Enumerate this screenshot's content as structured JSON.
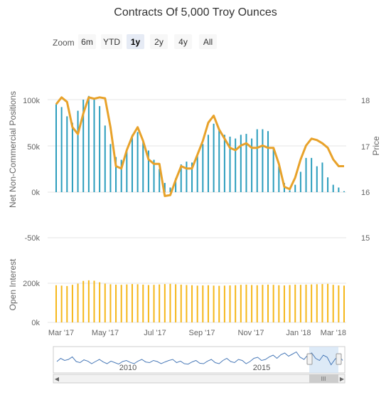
{
  "title": "Contracts Of 5,000 Troy Ounces",
  "zoom": {
    "label": "Zoom",
    "buttons": [
      "6m",
      "YTD",
      "1y",
      "2y",
      "4y",
      "All"
    ],
    "active": "1y"
  },
  "colors": {
    "net_bars": "#2b9dbd",
    "price_line": "#e8a22a",
    "oi_bars": "#f5b71a",
    "grid": "#e6e6e6",
    "navigator_line": "#4a7ab8",
    "navigator_mask": "#cfe1f3"
  },
  "chart_data": [
    {
      "type": "bar",
      "title": "Contracts Of 5,000 Troy Ounces",
      "ylabel": "Net Non-Commercial Positions",
      "y2label": "Price",
      "ylim": [
        -50000,
        120000
      ],
      "y2lim": [
        15,
        18.5
      ],
      "yticks": [
        "100k",
        "50k",
        "0k",
        "-50k"
      ],
      "y2ticks": [
        "18",
        "17",
        "16",
        "15"
      ],
      "xticks": [
        "Mar '17",
        "May '17",
        "Jul '17",
        "Sep '17",
        "Nov '17",
        "Jan '18",
        "Mar '18"
      ],
      "series": [
        {
          "type": "bar",
          "axis": "left",
          "values": [
            95000,
            92000,
            82000,
            75000,
            88000,
            100000,
            104000,
            101000,
            93000,
            72000,
            52000,
            38000,
            35000,
            45000,
            62000,
            65000,
            55000,
            45000,
            35000,
            25000,
            10000,
            5000,
            15000,
            30000,
            33000,
            32000,
            40000,
            52000,
            62000,
            74000,
            68000,
            62000,
            60000,
            58000,
            62000,
            63000,
            58000,
            68000,
            68000,
            66000,
            48000,
            28000,
            10000,
            2000,
            8000,
            22000,
            37000,
            37000,
            28000,
            32000,
            16000,
            8000,
            5000,
            1000
          ]
        },
        {
          "type": "line",
          "axis": "right",
          "values": [
            17.9,
            18.05,
            17.95,
            17.4,
            17.25,
            17.7,
            18.05,
            18.02,
            18.05,
            18.03,
            17.4,
            16.55,
            16.5,
            16.9,
            17.2,
            17.4,
            17.1,
            16.7,
            16.6,
            16.6,
            15.9,
            15.92,
            16.25,
            16.55,
            16.5,
            16.5,
            16.8,
            17.1,
            17.5,
            17.65,
            17.35,
            17.15,
            16.95,
            16.9,
            17.0,
            17.05,
            16.95,
            16.95,
            17.0,
            16.95,
            16.95,
            16.6,
            16.1,
            16.05,
            16.3,
            16.7,
            17.0,
            17.15,
            17.12,
            17.05,
            16.95,
            16.7,
            16.55,
            16.55
          ]
        }
      ]
    },
    {
      "type": "bar",
      "ylabel": "Open Interest",
      "ylim": [
        0,
        280000
      ],
      "yticks": [
        "200k",
        "0k"
      ],
      "series": [
        {
          "type": "bar",
          "values": [
            190000,
            188000,
            186000,
            192000,
            198000,
            212000,
            215000,
            213000,
            205000,
            198000,
            195000,
            193000,
            192000,
            194000,
            196000,
            195000,
            193000,
            191000,
            192000,
            194000,
            196000,
            197000,
            195000,
            193000,
            191000,
            190000,
            188000,
            189000,
            190000,
            188000,
            187000,
            188000,
            189000,
            190000,
            192000,
            193000,
            191000,
            190000,
            192000,
            193000,
            192000,
            190000,
            189000,
            191000,
            193000,
            192000,
            193000,
            194000,
            195000,
            196000,
            197000,
            192000,
            189000,
            188000
          ]
        }
      ]
    }
  ],
  "navigator": {
    "labels": [
      "2010",
      "2015"
    ],
    "series": [
      0.4,
      0.55,
      0.45,
      0.5,
      0.62,
      0.4,
      0.35,
      0.48,
      0.42,
      0.3,
      0.4,
      0.5,
      0.38,
      0.3,
      0.42,
      0.35,
      0.28,
      0.4,
      0.45,
      0.36,
      0.3,
      0.42,
      0.5,
      0.38,
      0.35,
      0.45,
      0.4,
      0.3,
      0.38,
      0.45,
      0.5,
      0.35,
      0.42,
      0.3,
      0.28,
      0.38,
      0.45,
      0.32,
      0.3,
      0.42,
      0.5,
      0.35,
      0.3,
      0.45,
      0.55,
      0.4,
      0.35,
      0.5,
      0.45,
      0.3,
      0.4,
      0.55,
      0.6,
      0.45,
      0.5,
      0.62,
      0.7,
      0.55,
      0.72,
      0.8,
      0.65,
      0.75,
      0.85,
      0.6,
      0.5,
      0.72,
      0.8,
      0.55,
      0.45,
      0.7,
      0.6,
      0.25,
      0.5,
      0.7,
      0.45
    ]
  },
  "scrollbar": {
    "left_arrow": "◀",
    "right_arrow": "▶",
    "grip": "III"
  }
}
